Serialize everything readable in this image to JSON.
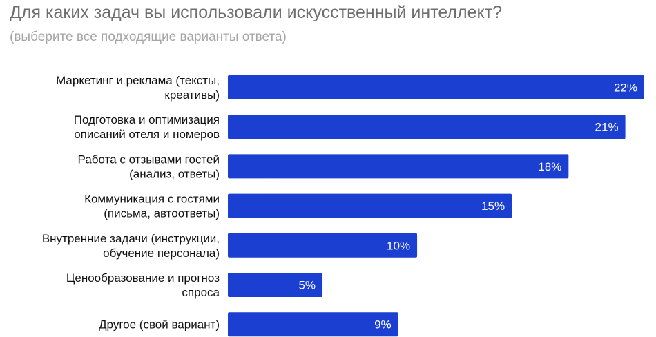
{
  "chart_data": {
    "type": "bar",
    "orientation": "horizontal",
    "title": "Для каких задач вы использовали искусственный интеллект?",
    "subtitle": "(выберите все подходящие варианты ответа)",
    "categories": [
      [
        "Маркетинг и реклама (тексты,",
        "креативы)"
      ],
      [
        "Подготовка и оптимизация",
        "описаний отеля и номеров"
      ],
      [
        "Работа с отзывами гостей",
        "(анализ, ответы)"
      ],
      [
        "Коммуникация с гостями",
        "(письма, автоответы)"
      ],
      [
        "Внутренние задачи (инструкции,",
        "обучение персонала)"
      ],
      [
        "Ценообразование и прогноз",
        "спроса"
      ],
      [
        "Другое (свой вариант)"
      ]
    ],
    "values": [
      22,
      21,
      18,
      15,
      10,
      5,
      9
    ],
    "value_suffix": "%",
    "xlim": [
      0,
      22
    ],
    "grid": false,
    "colors": {
      "bar": "#1a3fd1",
      "label": "#111111",
      "value_label": "#ffffff"
    }
  }
}
